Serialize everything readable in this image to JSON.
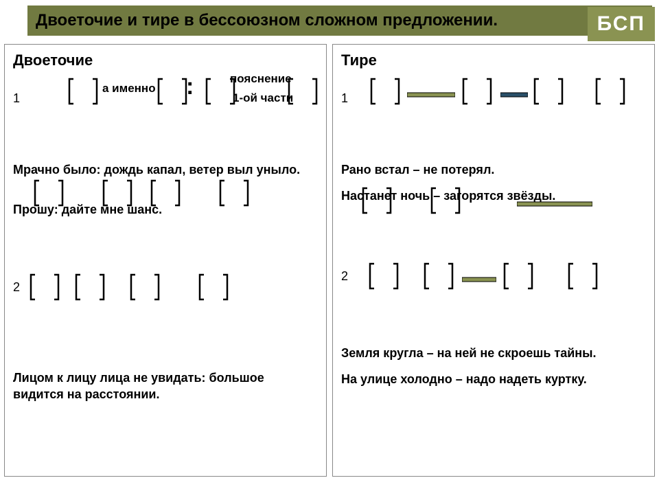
{
  "header": {
    "title": "Двоеточие и тире в бессоюзном сложном предложении.",
    "badge": "БСП",
    "bg": "#717a41",
    "badge_bg": "#8a9352"
  },
  "bracket": {
    "stroke": "#000000",
    "width": 44,
    "height": 40,
    "sw": 2.5
  },
  "dash": {
    "colors": [
      "#8a9352",
      "#2a5069"
    ]
  },
  "left": {
    "title": "Двоеточие",
    "row1": {
      "num": "1",
      "mid_label": "а именно",
      "colon": ":",
      "right_label1": "пояснение",
      "right_label2": "1-ой части"
    },
    "ex1": "Мрачно было: дождь капал, ветер выл уныло.",
    "ex2": "Прошу: дайте мне шанс.",
    "row2_num": "2",
    "ex3": "Лицом к лицу лица не увидать: большое видится на расстоянии."
  },
  "right": {
    "title": "Тире",
    "row1_num": "1",
    "ex1": "Рано встал – не потерял.",
    "ex2": "Настанет ночь – загорятся звёзды.",
    "row2_num": "2",
    "ex3": "Земля кругла – на ней не скроешь тайны.",
    "ex4": "На улице холодно – надо надеть куртку."
  }
}
